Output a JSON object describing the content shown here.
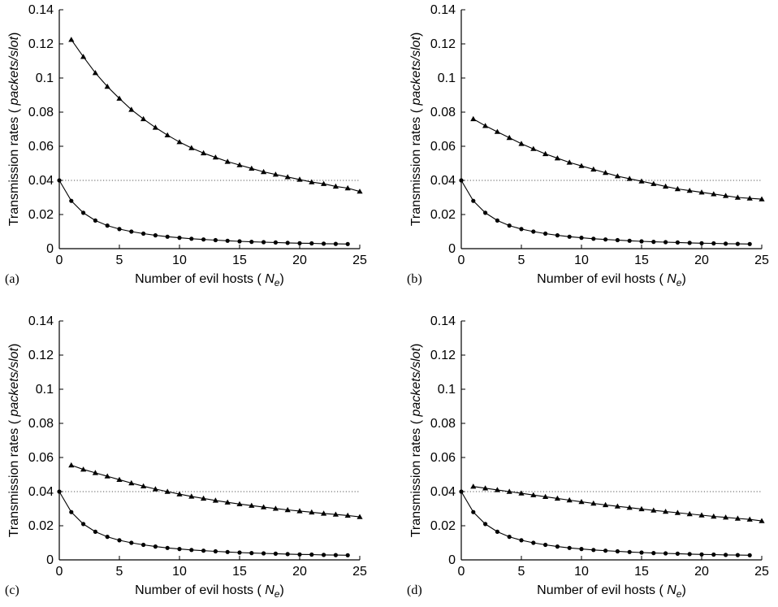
{
  "chart_data": [
    {
      "panel": "(a)",
      "type": "line",
      "xlabel": {
        "prefix": "Number of evil hosts ( ",
        "var": "N",
        "sub": "e",
        "suffix": ")"
      },
      "ylabel": {
        "prefix": "Transmission rates ( ",
        "unit": "packets/slot",
        "suffix": ")"
      },
      "xlim": [
        0,
        25
      ],
      "ylim": [
        0,
        0.14
      ],
      "xticks": [
        "0",
        "5",
        "10",
        "15",
        "20",
        "25"
      ],
      "yticks": [
        "0",
        "0.02",
        "0.04",
        "0.06",
        "0.08",
        "0.1",
        "0.12",
        "0.14"
      ],
      "reference_line": {
        "y": 0.04,
        "style": "dotted"
      },
      "series": [
        {
          "marker": "triangle",
          "x": [
            1,
            2,
            3,
            4,
            5,
            6,
            7,
            8,
            9,
            10,
            11,
            12,
            13,
            14,
            15,
            16,
            17,
            18,
            19,
            20,
            21,
            22,
            23,
            24,
            25
          ],
          "values": [
            0.1225,
            0.1125,
            0.103,
            0.095,
            0.088,
            0.0815,
            0.076,
            0.071,
            0.0665,
            0.0625,
            0.059,
            0.056,
            0.0535,
            0.051,
            0.049,
            0.047,
            0.045,
            0.0435,
            0.042,
            0.0405,
            0.039,
            0.038,
            0.0365,
            0.0355,
            0.0335
          ]
        },
        {
          "marker": "circle",
          "x": [
            0,
            1,
            2,
            3,
            4,
            5,
            6,
            7,
            8,
            9,
            10,
            11,
            12,
            13,
            14,
            15,
            16,
            17,
            18,
            19,
            20,
            21,
            22,
            23,
            24
          ],
          "values": [
            0.04,
            0.028,
            0.021,
            0.0165,
            0.0135,
            0.0115,
            0.01,
            0.0088,
            0.0078,
            0.007,
            0.0064,
            0.0058,
            0.0054,
            0.005,
            0.0046,
            0.0043,
            0.004,
            0.0038,
            0.0036,
            0.0034,
            0.0032,
            0.0031,
            0.0029,
            0.0028,
            0.0027
          ]
        }
      ]
    },
    {
      "panel": "(b)",
      "type": "line",
      "xlabel": {
        "prefix": "Number of evil hosts ( ",
        "var": "N",
        "sub": "e",
        "suffix": ")"
      },
      "ylabel": {
        "prefix": "Transmission rates ( ",
        "unit": "packets/slot",
        "suffix": ")"
      },
      "xlim": [
        0,
        25
      ],
      "ylim": [
        0,
        0.14
      ],
      "xticks": [
        "0",
        "5",
        "10",
        "15",
        "20",
        "25"
      ],
      "yticks": [
        "0",
        "0.02",
        "0.04",
        "0.06",
        "0.08",
        "0.1",
        "0.12",
        "0.14"
      ],
      "reference_line": {
        "y": 0.04,
        "style": "dotted"
      },
      "series": [
        {
          "marker": "triangle",
          "x": [
            1,
            2,
            3,
            4,
            5,
            6,
            7,
            8,
            9,
            10,
            11,
            12,
            13,
            14,
            15,
            16,
            17,
            18,
            19,
            20,
            21,
            22,
            23,
            24,
            25
          ],
          "values": [
            0.076,
            0.072,
            0.0685,
            0.065,
            0.0615,
            0.0585,
            0.0555,
            0.053,
            0.0505,
            0.0485,
            0.0465,
            0.0445,
            0.0425,
            0.041,
            0.0395,
            0.038,
            0.0365,
            0.035,
            0.034,
            0.033,
            0.032,
            0.031,
            0.03,
            0.0295,
            0.029
          ]
        },
        {
          "marker": "circle",
          "x": [
            0,
            1,
            2,
            3,
            4,
            5,
            6,
            7,
            8,
            9,
            10,
            11,
            12,
            13,
            14,
            15,
            16,
            17,
            18,
            19,
            20,
            21,
            22,
            23,
            24
          ],
          "values": [
            0.04,
            0.028,
            0.021,
            0.0165,
            0.0135,
            0.0115,
            0.01,
            0.0088,
            0.0078,
            0.007,
            0.0064,
            0.0058,
            0.0054,
            0.005,
            0.0046,
            0.0043,
            0.004,
            0.0038,
            0.0036,
            0.0034,
            0.0032,
            0.0031,
            0.0029,
            0.0028,
            0.0027
          ]
        }
      ]
    },
    {
      "panel": "(c)",
      "type": "line",
      "xlabel": {
        "prefix": "Number of evil hosts ( ",
        "var": "N",
        "sub": "e",
        "suffix": ")"
      },
      "ylabel": {
        "prefix": "Transmission rates ( ",
        "unit": "packets/slot",
        "suffix": ")"
      },
      "xlim": [
        0,
        25
      ],
      "ylim": [
        0,
        0.14
      ],
      "xticks": [
        "0",
        "5",
        "10",
        "15",
        "20",
        "25"
      ],
      "yticks": [
        "0",
        "0.02",
        "0.04",
        "0.06",
        "0.08",
        "0.1",
        "0.12",
        "0.14"
      ],
      "reference_line": {
        "y": 0.04,
        "style": "dotted"
      },
      "series": [
        {
          "marker": "triangle",
          "x": [
            1,
            2,
            3,
            4,
            5,
            6,
            7,
            8,
            9,
            10,
            11,
            12,
            13,
            14,
            15,
            16,
            17,
            18,
            19,
            20,
            21,
            22,
            23,
            24,
            25
          ],
          "values": [
            0.0555,
            0.053,
            0.051,
            0.049,
            0.047,
            0.045,
            0.0432,
            0.0415,
            0.04,
            0.0385,
            0.0372,
            0.036,
            0.0348,
            0.0337,
            0.0327,
            0.0318,
            0.0309,
            0.0301,
            0.0293,
            0.0286,
            0.0279,
            0.0272,
            0.0266,
            0.026,
            0.0252
          ]
        },
        {
          "marker": "circle",
          "x": [
            0,
            1,
            2,
            3,
            4,
            5,
            6,
            7,
            8,
            9,
            10,
            11,
            12,
            13,
            14,
            15,
            16,
            17,
            18,
            19,
            20,
            21,
            22,
            23,
            24
          ],
          "values": [
            0.04,
            0.028,
            0.021,
            0.0165,
            0.0135,
            0.0115,
            0.01,
            0.0088,
            0.0078,
            0.007,
            0.0064,
            0.0058,
            0.0054,
            0.005,
            0.0046,
            0.0043,
            0.004,
            0.0038,
            0.0036,
            0.0034,
            0.0032,
            0.0031,
            0.0029,
            0.0028,
            0.0027
          ]
        }
      ]
    },
    {
      "panel": "(d)",
      "type": "line",
      "xlabel": {
        "prefix": "Number of evil hosts ( ",
        "var": "N",
        "sub": "e",
        "suffix": ")"
      },
      "ylabel": {
        "prefix": "Transmission rates ( ",
        "unit": "packets/slot",
        "suffix": ")"
      },
      "xlim": [
        0,
        25
      ],
      "ylim": [
        0,
        0.14
      ],
      "xticks": [
        "0",
        "5",
        "10",
        "15",
        "20",
        "25"
      ],
      "yticks": [
        "0",
        "0.02",
        "0.04",
        "0.06",
        "0.08",
        "0.1",
        "0.12",
        "0.14"
      ],
      "reference_line": {
        "y": 0.04,
        "style": "dotted"
      },
      "series": [
        {
          "marker": "triangle",
          "x": [
            1,
            2,
            3,
            4,
            5,
            6,
            7,
            8,
            9,
            10,
            11,
            12,
            13,
            14,
            15,
            16,
            17,
            18,
            19,
            20,
            21,
            22,
            23,
            24,
            25
          ],
          "values": [
            0.043,
            0.042,
            0.041,
            0.04,
            0.039,
            0.038,
            0.037,
            0.036,
            0.035,
            0.034,
            0.0331,
            0.0322,
            0.0314,
            0.0306,
            0.0298,
            0.029,
            0.0283,
            0.0276,
            0.0269,
            0.0262,
            0.0255,
            0.0249,
            0.0243,
            0.0237,
            0.0228
          ]
        },
        {
          "marker": "circle",
          "x": [
            0,
            1,
            2,
            3,
            4,
            5,
            6,
            7,
            8,
            9,
            10,
            11,
            12,
            13,
            14,
            15,
            16,
            17,
            18,
            19,
            20,
            21,
            22,
            23,
            24
          ],
          "values": [
            0.04,
            0.028,
            0.021,
            0.0165,
            0.0135,
            0.0115,
            0.01,
            0.0088,
            0.0078,
            0.007,
            0.0064,
            0.0058,
            0.0054,
            0.005,
            0.0046,
            0.0043,
            0.004,
            0.0038,
            0.0036,
            0.0034,
            0.0032,
            0.0031,
            0.0029,
            0.0028,
            0.0027
          ]
        }
      ]
    }
  ]
}
